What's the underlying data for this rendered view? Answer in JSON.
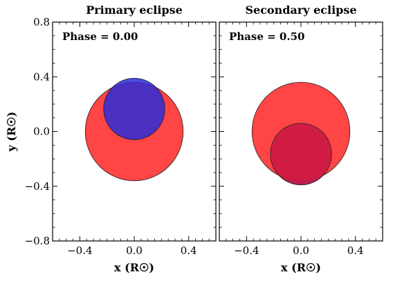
{
  "chart_data": [
    {
      "type": "scatter",
      "title": "Primary eclipse",
      "annotation": "Phase = 0.00",
      "xlabel": "x (R☉)",
      "ylabel": "y (R☉)",
      "xlim": [
        -0.6,
        0.6
      ],
      "ylim": [
        -0.8,
        0.8
      ],
      "xticks": [
        -0.4,
        0.0,
        0.4
      ],
      "yticks": [
        -0.8,
        -0.4,
        0.0,
        0.4,
        0.8
      ],
      "grid": false,
      "stars": [
        {
          "cx": 0.0,
          "cy": 0.0,
          "r": 0.36,
          "color": "#ff3b3b",
          "opacity": 0.95
        },
        {
          "cx": 0.0,
          "cy": 0.165,
          "r": 0.225,
          "color": "#2b2bd6",
          "opacity": 0.85
        }
      ]
    },
    {
      "type": "scatter",
      "title": "Secondary eclipse",
      "annotation": "Phase = 0.50",
      "xlabel": "x (R☉)",
      "ylabel": "",
      "xlim": [
        -0.6,
        0.6
      ],
      "ylim": [
        -0.8,
        0.8
      ],
      "xticks": [
        -0.4,
        0.0,
        0.4
      ],
      "yticks": [
        -0.8,
        -0.4,
        0.0,
        0.4,
        0.8
      ],
      "grid": false,
      "stars": [
        {
          "cx": 0.0,
          "cy": -0.165,
          "r": 0.225,
          "color": "#2b2bd6",
          "opacity": 0.9
        },
        {
          "cx": 0.0,
          "cy": 0.0,
          "r": 0.36,
          "color": "#ff3b3b",
          "opacity": 0.95
        },
        {
          "cx": 0.0,
          "cy": -0.165,
          "r": 0.225,
          "color": "#cc1a44",
          "opacity": 0.9
        }
      ]
    }
  ],
  "tick_format": {
    "minus": "−"
  }
}
